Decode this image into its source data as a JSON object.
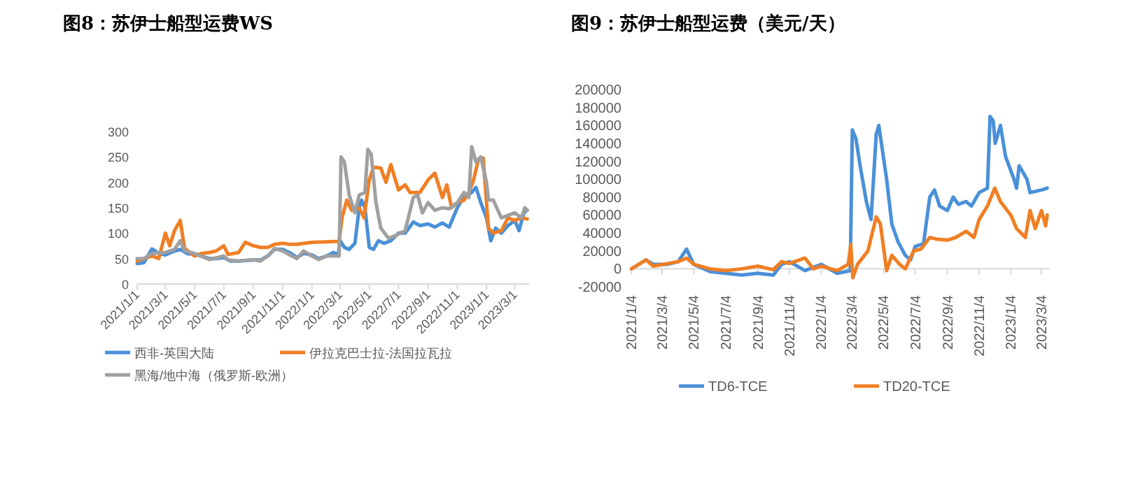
{
  "chart_data": [
    {
      "type": "line",
      "title": "图8：苏伊士船型运费WS",
      "xlim": [
        "2021-01-01",
        "2023-03-31"
      ],
      "ylim": [
        0,
        300
      ],
      "yticks": [
        0,
        50,
        100,
        150,
        200,
        250,
        300
      ],
      "xticks": [
        {
          "value": "2021-01-01",
          "label": "2021/1/1"
        },
        {
          "value": "2021-03-01",
          "label": "2021/3/1"
        },
        {
          "value": "2021-05-01",
          "label": "2021/5/1"
        },
        {
          "value": "2021-07-01",
          "label": "2021/7/1"
        },
        {
          "value": "2021-09-01",
          "label": "2021/9/1"
        },
        {
          "value": "2021-11-01",
          "label": "2021/11/1"
        },
        {
          "value": "2022-01-01",
          "label": "2022/1/1"
        },
        {
          "value": "2022-03-01",
          "label": "2022/3/1"
        },
        {
          "value": "2022-05-01",
          "label": "2022/5/1"
        },
        {
          "value": "2022-07-01",
          "label": "2022/7/1"
        },
        {
          "value": "2022-09-01",
          "label": "2022/9/1"
        },
        {
          "value": "2022-11-01",
          "label": "2022/11/1"
        },
        {
          "value": "2023-01-01",
          "label": "2023/1/1"
        },
        {
          "value": "2023-03-01",
          "label": "2023/3/1"
        }
      ],
      "grid": false,
      "legend": "bottom",
      "series": [
        {
          "name": "西非-英国大陆",
          "color": "#4a90d9",
          "x": [
            "2021-01-01",
            "2021-01-15",
            "2021-02-01",
            "2021-02-15",
            "2021-03-01",
            "2021-03-15",
            "2021-04-01",
            "2021-04-15",
            "2021-05-01",
            "2021-05-15",
            "2021-06-01",
            "2021-06-15",
            "2021-07-01",
            "2021-07-15",
            "2021-08-01",
            "2021-08-15",
            "2021-09-01",
            "2021-09-15",
            "2021-10-01",
            "2021-10-15",
            "2021-11-01",
            "2021-11-15",
            "2021-12-01",
            "2021-12-15",
            "2022-01-01",
            "2022-01-15",
            "2022-02-01",
            "2022-02-15",
            "2022-02-25",
            "2022-03-01",
            "2022-03-10",
            "2022-03-20",
            "2022-04-01",
            "2022-04-10",
            "2022-04-15",
            "2022-04-22",
            "2022-05-01",
            "2022-05-10",
            "2022-05-20",
            "2022-06-01",
            "2022-06-15",
            "2022-07-01",
            "2022-07-15",
            "2022-08-01",
            "2022-08-15",
            "2022-09-01",
            "2022-09-15",
            "2022-10-01",
            "2022-10-15",
            "2022-11-01",
            "2022-11-15",
            "2022-12-01",
            "2022-12-10",
            "2022-12-20",
            "2023-01-01",
            "2023-01-10",
            "2023-01-20",
            "2023-02-01",
            "2023-02-15",
            "2023-03-01",
            "2023-03-10",
            "2023-03-20",
            "2023-03-27"
          ],
          "values": [
            40,
            42,
            69,
            60,
            57,
            63,
            68,
            60,
            58,
            55,
            50,
            50,
            52,
            45,
            45,
            46,
            47,
            47,
            55,
            68,
            68,
            62,
            52,
            60,
            57,
            50,
            55,
            62,
            57,
            85,
            72,
            68,
            80,
            150,
            165,
            150,
            72,
            68,
            85,
            80,
            85,
            100,
            100,
            122,
            115,
            118,
            112,
            120,
            112,
            150,
            172,
            180,
            190,
            160,
            130,
            85,
            110,
            100,
            115,
            125,
            105,
            140,
            145
          ]
        },
        {
          "name": "伊拉克巴士拉-法国拉瓦拉",
          "color": "#f07f24",
          "x": [
            "2021-01-01",
            "2021-01-15",
            "2021-02-01",
            "2021-02-15",
            "2021-03-01",
            "2021-03-10",
            "2021-03-20",
            "2021-04-01",
            "2021-04-10",
            "2021-05-01",
            "2021-05-15",
            "2021-06-01",
            "2021-06-15",
            "2021-07-01",
            "2021-07-10",
            "2021-08-01",
            "2021-08-15",
            "2021-09-01",
            "2021-09-15",
            "2021-10-01",
            "2021-10-15",
            "2021-11-01",
            "2021-11-15",
            "2021-12-01",
            "2022-01-01",
            "2022-02-01",
            "2022-02-27",
            "2022-03-05",
            "2022-03-15",
            "2022-03-25",
            "2022-04-10",
            "2022-04-20",
            "2022-05-01",
            "2022-05-10",
            "2022-05-25",
            "2022-06-05",
            "2022-06-15",
            "2022-07-01",
            "2022-07-15",
            "2022-07-25",
            "2022-08-15",
            "2022-09-01",
            "2022-09-15",
            "2022-10-01",
            "2022-10-10",
            "2022-10-20",
            "2022-11-01",
            "2022-11-15",
            "2022-11-25",
            "2022-12-05",
            "2022-12-15",
            "2022-12-25",
            "2023-01-05",
            "2023-01-15",
            "2023-02-01",
            "2023-02-15",
            "2023-03-01",
            "2023-03-15",
            "2023-03-27"
          ],
          "values": [
            45,
            50,
            55,
            50,
            100,
            75,
            105,
            125,
            70,
            55,
            60,
            62,
            65,
            75,
            58,
            62,
            82,
            75,
            72,
            72,
            78,
            80,
            78,
            78,
            82,
            83,
            84,
            130,
            165,
            145,
            150,
            130,
            205,
            230,
            228,
            200,
            235,
            185,
            195,
            180,
            180,
            205,
            218,
            170,
            195,
            150,
            160,
            165,
            180,
            205,
            245,
            248,
            110,
            100,
            105,
            130,
            125,
            130,
            128
          ]
        },
        {
          "name": "黑海/地中海（俄罗斯-欧洲）",
          "color": "#a0a0a0",
          "x": [
            "2021-01-01",
            "2021-01-15",
            "2021-02-01",
            "2021-03-01",
            "2021-03-20",
            "2021-04-01",
            "2021-04-10",
            "2021-05-01",
            "2021-06-01",
            "2021-07-01",
            "2021-07-10",
            "2021-08-01",
            "2021-09-01",
            "2021-09-15",
            "2021-10-01",
            "2021-10-15",
            "2021-11-01",
            "2021-11-20",
            "2021-12-01",
            "2021-12-15",
            "2022-01-01",
            "2022-01-15",
            "2022-02-01",
            "2022-02-27",
            "2022-03-03",
            "2022-03-10",
            "2022-03-20",
            "2022-04-01",
            "2022-04-10",
            "2022-04-22",
            "2022-04-28",
            "2022-05-05",
            "2022-05-15",
            "2022-05-25",
            "2022-06-10",
            "2022-06-25",
            "2022-07-05",
            "2022-07-15",
            "2022-08-01",
            "2022-08-10",
            "2022-08-20",
            "2022-09-01",
            "2022-09-15",
            "2022-10-01",
            "2022-10-15",
            "2022-11-01",
            "2022-11-15",
            "2022-11-25",
            "2022-12-01",
            "2022-12-10",
            "2022-12-20",
            "2023-01-01",
            "2023-01-05",
            "2023-01-15",
            "2023-02-01",
            "2023-02-15",
            "2023-03-01",
            "2023-03-15",
            "2023-03-22",
            "2023-03-27"
          ],
          "values": [
            50,
            50,
            60,
            62,
            68,
            85,
            65,
            60,
            48,
            55,
            47,
            45,
            48,
            45,
            55,
            70,
            65,
            55,
            50,
            65,
            55,
            48,
            55,
            55,
            250,
            240,
            175,
            140,
            175,
            180,
            265,
            255,
            160,
            110,
            90,
            95,
            100,
            105,
            170,
            175,
            140,
            160,
            145,
            150,
            148,
            160,
            180,
            170,
            270,
            240,
            250,
            200,
            165,
            165,
            130,
            135,
            140,
            130,
            150,
            145
          ]
        }
      ]
    },
    {
      "type": "line",
      "title": "图9：苏伊士船型运费（美元/天）",
      "xlim": [
        "2021-01-01",
        "2023-03-20"
      ],
      "ylim": [
        -20000,
        200000
      ],
      "yticks": [
        -20000,
        0,
        20000,
        40000,
        60000,
        80000,
        100000,
        120000,
        140000,
        160000,
        180000,
        200000
      ],
      "xticks": [
        {
          "value": "2021-01-04",
          "label": "2021/1/4"
        },
        {
          "value": "2021-03-04",
          "label": "2021/3/4"
        },
        {
          "value": "2021-05-04",
          "label": "2021/5/4"
        },
        {
          "value": "2021-07-04",
          "label": "2021/7/4"
        },
        {
          "value": "2021-09-04",
          "label": "2021/9/4"
        },
        {
          "value": "2021-11-04",
          "label": "2021/11/4"
        },
        {
          "value": "2022-01-04",
          "label": "2022/1/4"
        },
        {
          "value": "2022-03-04",
          "label": "2022/3/4"
        },
        {
          "value": "2022-05-04",
          "label": "2022/5/4"
        },
        {
          "value": "2022-07-04",
          "label": "2022/7/4"
        },
        {
          "value": "2022-09-04",
          "label": "2022/9/4"
        },
        {
          "value": "2022-11-04",
          "label": "2022/11/4"
        },
        {
          "value": "2023-01-04",
          "label": "2023/1/4"
        },
        {
          "value": "2023-03-04",
          "label": "2023/3/4"
        }
      ],
      "grid": false,
      "legend": "bottom",
      "series": [
        {
          "name": "TD6-TCE",
          "color": "#4a90d9",
          "x": [
            "2021-01-04",
            "2021-02-01",
            "2021-02-15",
            "2021-03-15",
            "2021-04-04",
            "2021-04-20",
            "2021-05-04",
            "2021-06-04",
            "2021-07-04",
            "2021-08-04",
            "2021-09-04",
            "2021-10-04",
            "2021-10-20",
            "2021-11-04",
            "2021-12-04",
            "2022-01-04",
            "2022-02-04",
            "2022-03-01",
            "2022-03-05",
            "2022-03-12",
            "2022-03-20",
            "2022-04-01",
            "2022-04-10",
            "2022-04-20",
            "2022-04-25",
            "2022-05-10",
            "2022-05-20",
            "2022-06-01",
            "2022-06-15",
            "2022-06-25",
            "2022-07-04",
            "2022-07-20",
            "2022-08-01",
            "2022-08-10",
            "2022-08-20",
            "2022-09-04",
            "2022-09-15",
            "2022-09-25",
            "2022-10-10",
            "2022-10-20",
            "2022-11-04",
            "2022-11-20",
            "2022-11-25",
            "2022-12-01",
            "2022-12-05",
            "2022-12-15",
            "2022-12-25",
            "2023-01-10",
            "2023-01-15",
            "2023-01-20",
            "2023-02-04",
            "2023-02-10",
            "2023-03-04",
            "2023-03-15"
          ],
          "values": [
            0,
            10000,
            5000,
            5000,
            8000,
            22000,
            5000,
            -3000,
            -5000,
            -7000,
            -5000,
            -7000,
            5000,
            8000,
            -2000,
            5000,
            -5000,
            -2000,
            155000,
            145000,
            115000,
            75000,
            55000,
            150000,
            160000,
            100000,
            50000,
            30000,
            15000,
            10000,
            25000,
            28000,
            80000,
            88000,
            70000,
            65000,
            80000,
            72000,
            75000,
            70000,
            85000,
            90000,
            170000,
            165000,
            140000,
            160000,
            125000,
            100000,
            90000,
            115000,
            100000,
            85000,
            88000,
            90000
          ]
        },
        {
          "name": "TD20-TCE",
          "color": "#f07f24",
          "x": [
            "2021-01-04",
            "2021-02-01",
            "2021-02-15",
            "2021-04-04",
            "2021-04-20",
            "2021-05-04",
            "2021-06-04",
            "2021-07-04",
            "2021-08-04",
            "2021-09-04",
            "2021-10-04",
            "2021-10-20",
            "2021-11-04",
            "2021-12-04",
            "2021-12-20",
            "2022-01-04",
            "2022-02-04",
            "2022-02-25",
            "2022-03-02",
            "2022-03-06",
            "2022-03-15",
            "2022-04-04",
            "2022-04-20",
            "2022-04-28",
            "2022-05-10",
            "2022-05-20",
            "2022-06-04",
            "2022-06-15",
            "2022-07-01",
            "2022-07-15",
            "2022-08-01",
            "2022-08-15",
            "2022-09-04",
            "2022-09-20",
            "2022-10-10",
            "2022-10-25",
            "2022-11-04",
            "2022-11-20",
            "2022-12-04",
            "2022-12-15",
            "2023-01-04",
            "2023-01-15",
            "2023-02-01",
            "2023-02-10",
            "2023-02-20",
            "2023-03-04",
            "2023-03-12",
            "2023-03-15"
          ],
          "values": [
            0,
            10000,
            3000,
            8000,
            12000,
            5000,
            0,
            -2000,
            0,
            3000,
            -1000,
            8000,
            6000,
            12000,
            0,
            3000,
            -2000,
            5000,
            27000,
            -10000,
            5000,
            20000,
            58000,
            50000,
            -2000,
            15000,
            5000,
            0,
            20000,
            22000,
            35000,
            33000,
            32000,
            35000,
            42000,
            35000,
            55000,
            70000,
            90000,
            75000,
            60000,
            45000,
            35000,
            65000,
            45000,
            65000,
            48000,
            60000
          ]
        }
      ]
    }
  ]
}
